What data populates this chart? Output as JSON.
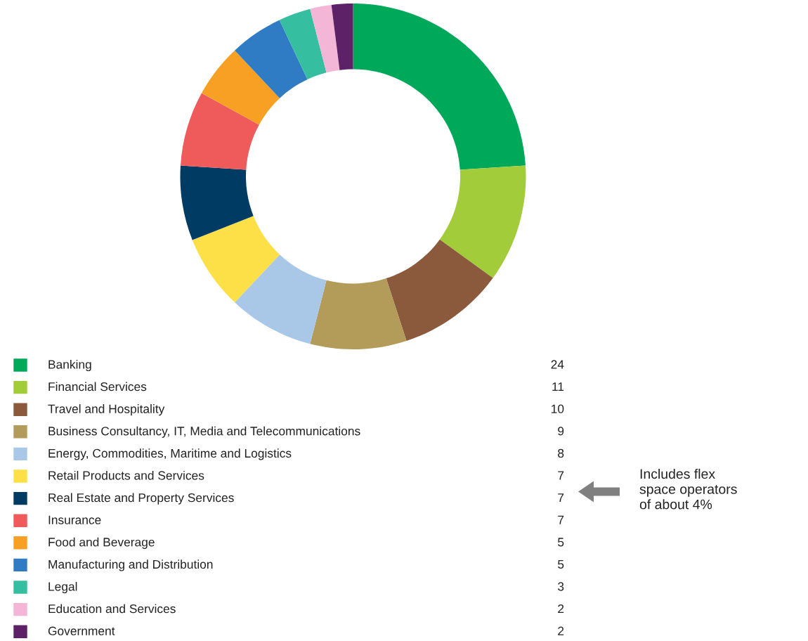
{
  "chart_data": {
    "type": "donut",
    "categories": [
      "Banking",
      "Financial Services",
      "Travel and Hospitality",
      "Business Consultancy, IT, Media and Telecommunications",
      "Energy, Commodities, Maritime and Logistics",
      "Retail Products and Services",
      "Real Estate and Property Services",
      "Insurance",
      "Food and Beverage",
      "Manufacturing and Distribution",
      "Legal",
      "Education and Services",
      "Government"
    ],
    "values": [
      24,
      11,
      10,
      9,
      8,
      7,
      7,
      7,
      5,
      5,
      3,
      2,
      2
    ],
    "colors": [
      "#00a85a",
      "#a3cc3a",
      "#8b5a3c",
      "#b39b5a",
      "#a9c8e8",
      "#fde047",
      "#003b64",
      "#ef5a5a",
      "#f7a023",
      "#2f7bc4",
      "#35bfa0",
      "#f4b6d6",
      "#5c2167"
    ],
    "data_labels": true,
    "legend": "bottom",
    "annotations": [
      {
        "text": "Includes flex\nspace operators\nof about 4%",
        "y": "Real Estate and Property Services"
      }
    ]
  }
}
